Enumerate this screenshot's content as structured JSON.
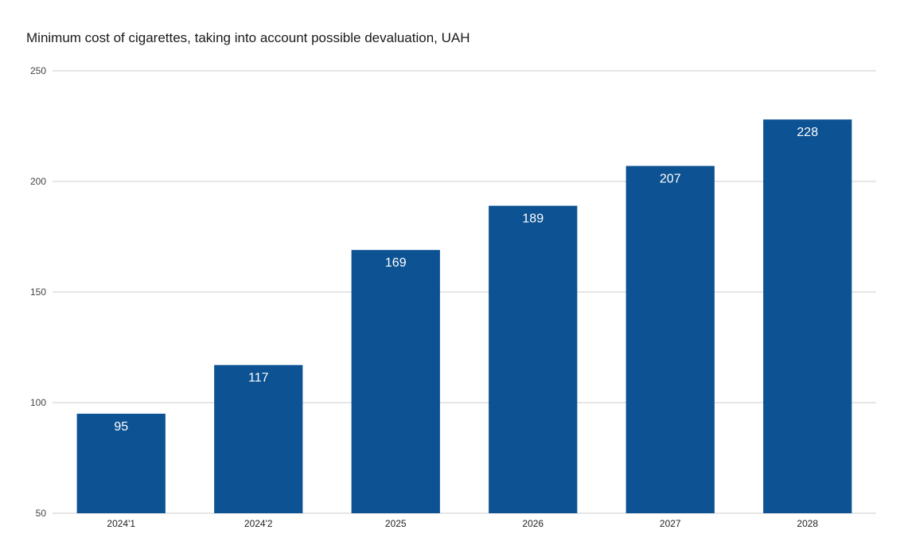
{
  "chart_data": {
    "type": "bar",
    "title": "Minimum cost of cigarettes, taking into account possible devaluation, UAH",
    "xlabel": "",
    "ylabel": "",
    "categories": [
      "2024'1",
      "2024'2",
      "2025",
      "2026",
      "2027",
      "2028"
    ],
    "values": [
      95,
      117,
      169,
      189,
      207,
      228
    ],
    "data_labels": [
      "95",
      "117",
      "169",
      "189",
      "207",
      "228"
    ],
    "ylim": [
      50,
      250
    ],
    "yticks": [
      50,
      100,
      150,
      200,
      250
    ],
    "grid": true,
    "legend": "none",
    "bar_color": "#0d5293",
    "label_color": "#ffffff"
  }
}
